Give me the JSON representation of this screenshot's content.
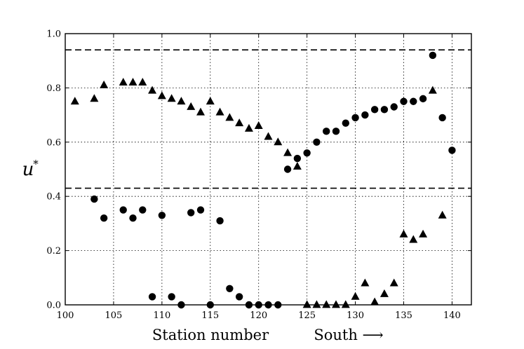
{
  "chart_data": {
    "type": "scatter",
    "xlabel": "Station number",
    "xlabel_right": "South ⟶",
    "ylabel": "u",
    "ylabel_superscript": "*",
    "xlim": [
      100,
      142
    ],
    "ylim": [
      0.0,
      1.0
    ],
    "xticks": [
      "100",
      "105",
      "110",
      "115",
      "120",
      "125",
      "130",
      "135",
      "140"
    ],
    "yticks": [
      "0.0",
      "0.2",
      "0.4",
      "0.6",
      "0.8",
      "1.0"
    ],
    "grid": true,
    "hlines": [
      0.94,
      0.43
    ],
    "series": [
      {
        "marker": "triangle",
        "points": [
          [
            101,
            0.75
          ],
          [
            103,
            0.76
          ],
          [
            104,
            0.81
          ],
          [
            106,
            0.82
          ],
          [
            107,
            0.82
          ],
          [
            108,
            0.82
          ],
          [
            109,
            0.79
          ],
          [
            110,
            0.77
          ],
          [
            111,
            0.76
          ],
          [
            112,
            0.75
          ],
          [
            113,
            0.73
          ],
          [
            114,
            0.71
          ],
          [
            115,
            0.75
          ],
          [
            116,
            0.71
          ],
          [
            117,
            0.69
          ],
          [
            118,
            0.67
          ],
          [
            119,
            0.65
          ],
          [
            120,
            0.66
          ],
          [
            121,
            0.62
          ],
          [
            122,
            0.6
          ],
          [
            123,
            0.56
          ],
          [
            124,
            0.51
          ],
          [
            125,
            0.0
          ],
          [
            126,
            0.0
          ],
          [
            127,
            0.0
          ],
          [
            128,
            0.0
          ],
          [
            129,
            0.0
          ],
          [
            130,
            0.03
          ],
          [
            131,
            0.08
          ],
          [
            132,
            0.01
          ],
          [
            133,
            0.04
          ],
          [
            134,
            0.08
          ],
          [
            135,
            0.26
          ],
          [
            136,
            0.24
          ],
          [
            137,
            0.26
          ],
          [
            138,
            0.79
          ],
          [
            139,
            0.33
          ]
        ]
      },
      {
        "marker": "circle",
        "points": [
          [
            103,
            0.39
          ],
          [
            104,
            0.32
          ],
          [
            106,
            0.35
          ],
          [
            107,
            0.32
          ],
          [
            108,
            0.35
          ],
          [
            109,
            0.03
          ],
          [
            110,
            0.33
          ],
          [
            111,
            0.03
          ],
          [
            112,
            0.0
          ],
          [
            113,
            0.34
          ],
          [
            114,
            0.35
          ],
          [
            115,
            0.0
          ],
          [
            116,
            0.31
          ],
          [
            117,
            0.06
          ],
          [
            118,
            0.03
          ],
          [
            119,
            0.0
          ],
          [
            120,
            0.0
          ],
          [
            121,
            0.0
          ],
          [
            122,
            0.0
          ],
          [
            123,
            0.5
          ],
          [
            124,
            0.54
          ],
          [
            125,
            0.56
          ],
          [
            126,
            0.6
          ],
          [
            127,
            0.64
          ],
          [
            128,
            0.64
          ],
          [
            129,
            0.67
          ],
          [
            130,
            0.69
          ],
          [
            131,
            0.7
          ],
          [
            132,
            0.72
          ],
          [
            133,
            0.72
          ],
          [
            134,
            0.73
          ],
          [
            135,
            0.75
          ],
          [
            136,
            0.75
          ],
          [
            137,
            0.76
          ],
          [
            138,
            0.92
          ],
          [
            139,
            0.69
          ],
          [
            140,
            0.57
          ]
        ]
      }
    ]
  }
}
